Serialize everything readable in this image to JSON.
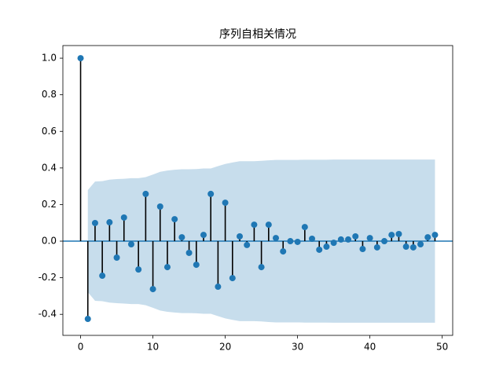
{
  "chart_data": {
    "type": "acf",
    "title": "序列自相关情况",
    "x": [
      0,
      1,
      2,
      3,
      4,
      5,
      6,
      7,
      8,
      9,
      10,
      11,
      12,
      13,
      14,
      15,
      16,
      17,
      18,
      19,
      20,
      21,
      22,
      23,
      24,
      25,
      26,
      27,
      28,
      29,
      30,
      31,
      32,
      33,
      34,
      35,
      36,
      37,
      38,
      39,
      40,
      41,
      42,
      43,
      44,
      45,
      46,
      47,
      48,
      49
    ],
    "values": [
      1.0,
      -0.425,
      0.099,
      -0.189,
      0.103,
      -0.09,
      0.129,
      -0.017,
      -0.155,
      0.258,
      -0.262,
      0.189,
      -0.142,
      0.12,
      0.021,
      -0.064,
      -0.129,
      0.034,
      0.258,
      -0.249,
      0.21,
      -0.202,
      0.026,
      -0.021,
      0.09,
      -0.142,
      0.09,
      0.017,
      -0.056,
      0.0,
      -0.004,
      0.077,
      0.013,
      -0.047,
      -0.03,
      -0.009,
      0.009,
      0.009,
      0.026,
      -0.043,
      0.017,
      -0.034,
      0.0,
      0.034,
      0.039,
      -0.03,
      -0.034,
      -0.017,
      0.021,
      0.034
    ],
    "color": "#1f77b4",
    "stem_color": "#000000",
    "band_color": "#1f77b4",
    "band_x": [
      1,
      2,
      3,
      4,
      5,
      6,
      7,
      8,
      9,
      10,
      11,
      12,
      13,
      14,
      15,
      16,
      17,
      18,
      19,
      20,
      21,
      22,
      23,
      24,
      25,
      26,
      27,
      28,
      29,
      30,
      31,
      32,
      33,
      34,
      35,
      36,
      37,
      38,
      39,
      40,
      41,
      42,
      43,
      44,
      45,
      46,
      47,
      48,
      49
    ],
    "band_upper": [
      0.279,
      0.326,
      0.328,
      0.336,
      0.339,
      0.341,
      0.344,
      0.344,
      0.35,
      0.364,
      0.379,
      0.386,
      0.39,
      0.393,
      0.393,
      0.394,
      0.397,
      0.397,
      0.41,
      0.422,
      0.43,
      0.437,
      0.437,
      0.437,
      0.439,
      0.442,
      0.444,
      0.444,
      0.444,
      0.444,
      0.445,
      0.445,
      0.445,
      0.445,
      0.446,
      0.446,
      0.446,
      0.446,
      0.446,
      0.446,
      0.446,
      0.446,
      0.446,
      0.446,
      0.446,
      0.446,
      0.446,
      0.446,
      0.446
    ],
    "band_lower": [
      -0.279,
      -0.326,
      -0.328,
      -0.336,
      -0.339,
      -0.341,
      -0.344,
      -0.344,
      -0.35,
      -0.364,
      -0.379,
      -0.386,
      -0.39,
      -0.393,
      -0.393,
      -0.394,
      -0.397,
      -0.397,
      -0.41,
      -0.422,
      -0.43,
      -0.437,
      -0.437,
      -0.437,
      -0.439,
      -0.442,
      -0.444,
      -0.444,
      -0.444,
      -0.444,
      -0.445,
      -0.445,
      -0.445,
      -0.445,
      -0.446,
      -0.446,
      -0.446,
      -0.446,
      -0.446,
      -0.446,
      -0.446,
      -0.446,
      -0.446,
      -0.446,
      -0.446,
      -0.446,
      -0.446,
      -0.446,
      -0.446
    ],
    "xlim": [
      -2.45,
      51.45
    ],
    "xticks": [
      0,
      10,
      20,
      30,
      40,
      50
    ],
    "ylim": [
      -0.515,
      1.069
    ],
    "yticks": [
      {
        "value": -0.4,
        "label": "-0.4"
      },
      {
        "value": -0.2,
        "label": "-0.2"
      },
      {
        "value": 0,
        "label": "0.0"
      },
      {
        "value": 0.2,
        "label": "0.2"
      },
      {
        "value": 0.4,
        "label": "0.4"
      },
      {
        "value": 0.6,
        "label": "0.6"
      },
      {
        "value": 0.8,
        "label": "0.8"
      },
      {
        "value": 1.0,
        "label": "1.0"
      }
    ],
    "grid": false
  }
}
